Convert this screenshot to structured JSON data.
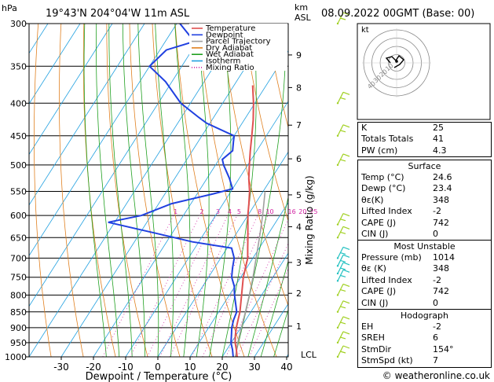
{
  "header": {
    "location": "19°43'N  204°04'W  11m  ASL",
    "datetime": "08.09.2022  00GMT  (Base: 00)",
    "hpa_label": "hPa",
    "km_label": "km",
    "asl_label": "ASL"
  },
  "credit": "© weatheronline.co.uk",
  "colors": {
    "temperature": "#e05050",
    "dewpoint": "#2040e0",
    "parcel": "#a0a0a0",
    "dry_adiabat": "#e08020",
    "wet_adiabat": "#20a020",
    "isotherm": "#20a0e0",
    "mixing_ratio": "#d020a0",
    "wind_barbs": "#a0d020",
    "wind_barbs_mid": "#20c0c0"
  },
  "chart_data": {
    "type": "line",
    "xlabel": "Dewpoint / Temperature (°C)",
    "ylabel_right": "Mixing Ratio (g/kg)",
    "x_ticks": [
      -30,
      -20,
      -10,
      0,
      10,
      20,
      30,
      40
    ],
    "xlim": [
      -40,
      40
    ],
    "pressure_ticks": [
      300,
      350,
      400,
      450,
      500,
      550,
      600,
      650,
      700,
      750,
      800,
      850,
      900,
      950,
      1000
    ],
    "ylim_hpa": [
      1000,
      300
    ],
    "km_ticks": [
      {
        "label": "9",
        "p": 336
      },
      {
        "label": "8",
        "p": 378
      },
      {
        "label": "7",
        "p": 433
      },
      {
        "label": "6",
        "p": 489
      },
      {
        "label": "5",
        "p": 557
      },
      {
        "label": "4",
        "p": 625
      },
      {
        "label": "3",
        "p": 711
      },
      {
        "label": "2",
        "p": 795
      },
      {
        "label": "1",
        "p": 895
      }
    ],
    "lcl_label": "LCL",
    "lcl_p": 997,
    "mixing_ratio_labels": [
      "1",
      "2",
      "3",
      "4",
      "5",
      "8",
      "10",
      "16",
      "20",
      "25"
    ],
    "mixing_ratio_label_p": 591,
    "legend": [
      {
        "label": "Temperature",
        "key": "temperature",
        "style": "solid"
      },
      {
        "label": "Dewpoint",
        "key": "dewpoint",
        "style": "solid"
      },
      {
        "label": "Parcel Trajectory",
        "key": "parcel",
        "style": "solid"
      },
      {
        "label": "Dry Adiabat",
        "key": "dry_adiabat",
        "style": "solid"
      },
      {
        "label": "Wet Adiabat",
        "key": "wet_adiabat",
        "style": "solid"
      },
      {
        "label": "Isotherm",
        "key": "isotherm",
        "style": "solid"
      },
      {
        "label": "Mixing Ratio",
        "key": "mixing_ratio",
        "style": "dotted"
      }
    ],
    "series": [
      {
        "name": "Temperature",
        "points": [
          {
            "p": 1000,
            "t": 24.6
          },
          {
            "p": 975,
            "t": 23.0
          },
          {
            "p": 950,
            "t": 21.2
          },
          {
            "p": 925,
            "t": 19.8
          },
          {
            "p": 900,
            "t": 18.6
          },
          {
            "p": 875,
            "t": 17.6
          },
          {
            "p": 850,
            "t": 16.6
          },
          {
            "p": 800,
            "t": 13.8
          },
          {
            "p": 750,
            "t": 10.8
          },
          {
            "p": 700,
            "t": 8.4
          },
          {
            "p": 675,
            "t": 6.4
          },
          {
            "p": 650,
            "t": 4.4
          },
          {
            "p": 600,
            "t": 0.0
          },
          {
            "p": 575,
            "t": -2.0
          },
          {
            "p": 550,
            "t": -4.2
          },
          {
            "p": 525,
            "t": -7.0
          },
          {
            "p": 500,
            "t": -9.5
          },
          {
            "p": 475,
            "t": -12.0
          },
          {
            "p": 450,
            "t": -14.5
          },
          {
            "p": 425,
            "t": -17.2
          },
          {
            "p": 400,
            "t": -20.4
          },
          {
            "p": 375,
            "t": -24.2
          }
        ]
      },
      {
        "name": "Dewpoint",
        "points": [
          {
            "p": 1000,
            "t": 23.4
          },
          {
            "p": 975,
            "t": 21.8
          },
          {
            "p": 950,
            "t": 19.9
          },
          {
            "p": 925,
            "t": 18.6
          },
          {
            "p": 900,
            "t": 17.2
          },
          {
            "p": 875,
            "t": 16.2
          },
          {
            "p": 850,
            "t": 15.6
          },
          {
            "p": 800,
            "t": 11.6
          },
          {
            "p": 775,
            "t": 9.8
          },
          {
            "p": 750,
            "t": 7.2
          },
          {
            "p": 725,
            "t": 5.6
          },
          {
            "p": 700,
            "t": 4.2
          },
          {
            "p": 675,
            "t": 1.4
          },
          {
            "p": 660,
            "t": -12.0
          },
          {
            "p": 640,
            "t": -25.0
          },
          {
            "p": 615,
            "t": -42.0
          },
          {
            "p": 600,
            "t": -33.0
          },
          {
            "p": 575,
            "t": -26.0
          },
          {
            "p": 555,
            "t": -15.0
          },
          {
            "p": 545,
            "t": -10.0
          },
          {
            "p": 525,
            "t": -13.0
          },
          {
            "p": 500,
            "t": -17.5
          },
          {
            "p": 490,
            "t": -19.0
          },
          {
            "p": 475,
            "t": -17.5
          },
          {
            "p": 460,
            "t": -19.0
          },
          {
            "p": 450,
            "t": -20.0
          },
          {
            "p": 430,
            "t": -31.0
          },
          {
            "p": 420,
            "t": -35.0
          },
          {
            "p": 400,
            "t": -43.0
          },
          {
            "p": 370,
            "t": -52.0
          },
          {
            "p": 350,
            "t": -60.0
          },
          {
            "p": 330,
            "t": -58.0
          },
          {
            "p": 320,
            "t": -51.0
          },
          {
            "p": 300,
            "t": -59.0
          }
        ]
      },
      {
        "name": "Parcel Trajectory",
        "points": [
          {
            "p": 1000,
            "t": 24.6
          },
          {
            "p": 997,
            "t": 24.0
          },
          {
            "p": 950,
            "t": 22.0
          },
          {
            "p": 900,
            "t": 20.2
          },
          {
            "p": 850,
            "t": 18.3
          },
          {
            "p": 800,
            "t": 16.2
          },
          {
            "p": 750,
            "t": 13.8
          },
          {
            "p": 700,
            "t": 11.0
          },
          {
            "p": 650,
            "t": 8.0
          },
          {
            "p": 600,
            "t": 4.6
          },
          {
            "p": 550,
            "t": 0.6
          }
        ]
      }
    ],
    "wind_levels_hpa": [
      300,
      400,
      450,
      500,
      620,
      650,
      700,
      720,
      740,
      760,
      800,
      850,
      900,
      950,
      1000
    ]
  },
  "hodograph": {
    "label": "kt",
    "ring_labels": [
      "10",
      "20",
      "30",
      "40"
    ]
  },
  "indices": {
    "basic": [
      {
        "label": "K",
        "value": "25"
      },
      {
        "label": "Totals Totals",
        "value": "41"
      },
      {
        "label": "PW (cm)",
        "value": "4.3"
      }
    ],
    "surface": {
      "title": "Surface",
      "rows": [
        {
          "label": "Temp (°C)",
          "value": "24.6"
        },
        {
          "label": "Dewp (°C)",
          "value": "23.4"
        },
        {
          "label": "θε(K)",
          "value": "348"
        },
        {
          "label": "Lifted Index",
          "value": "-2"
        },
        {
          "label": "CAPE (J)",
          "value": "742"
        },
        {
          "label": "CIN (J)",
          "value": "0"
        }
      ]
    },
    "most_unstable": {
      "title": "Most Unstable",
      "rows": [
        {
          "label": "Pressure (mb)",
          "value": "1014"
        },
        {
          "label": "θε (K)",
          "value": "348"
        },
        {
          "label": "Lifted Index",
          "value": "-2"
        },
        {
          "label": "CAPE (J)",
          "value": "742"
        },
        {
          "label": "CIN (J)",
          "value": "0"
        }
      ]
    },
    "hodograph": {
      "title": "Hodograph",
      "rows": [
        {
          "label": "EH",
          "value": "-2"
        },
        {
          "label": "SREH",
          "value": "6"
        },
        {
          "label": "StmDir",
          "value": "154°"
        },
        {
          "label": "StmSpd (kt)",
          "value": "7"
        }
      ]
    }
  }
}
